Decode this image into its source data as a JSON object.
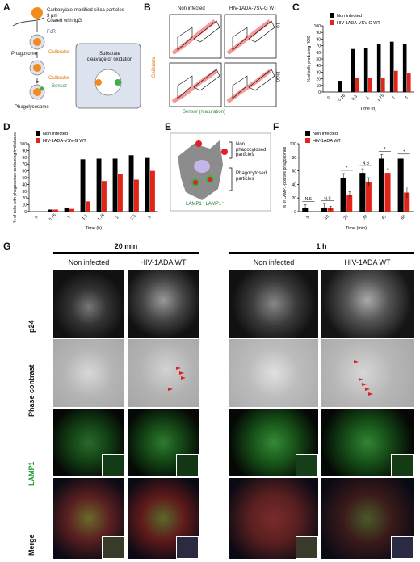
{
  "panels": {
    "a": "A",
    "b": "B",
    "c": "C",
    "d": "D",
    "e": "E",
    "f": "F",
    "g": "G"
  },
  "panelA": {
    "lines": [
      "Carboxylate-modified silica particles",
      "3 µm",
      "Coated with IgG"
    ],
    "fcr": "FcR",
    "phagosome": "Phagosome",
    "calibrator": "Calibrator",
    "sensor": "Sensor",
    "phagolysosome": "Phagolysosome",
    "box_text": [
      "Substrate",
      "cleavage or oxidation"
    ]
  },
  "panelB": {
    "col1": "Non infected",
    "col2": "HIV-1ADA-VSV-G WT",
    "row1": "10 min",
    "row2": "1h30",
    "ylabel": "Calibrator",
    "xlabel": "Sensor (maturation)",
    "r1": "R1",
    "r2": "R2",
    "ticks": [
      "10⁰",
      "10¹",
      "10²",
      "10³",
      "10⁴"
    ]
  },
  "chart_data": [
    {
      "type": "bar",
      "panel": "C",
      "categories": [
        "0",
        "0.16",
        "0.5",
        "1",
        "1.75",
        "2",
        "3"
      ],
      "series": [
        {
          "name": "Non infected",
          "color": "#000000",
          "values": [
            0,
            17,
            65,
            67,
            73,
            76,
            72
          ]
        },
        {
          "name": "HIV-1ADA-VSV-G WT",
          "color": "#e1251b",
          "values": [
            0,
            0,
            21,
            22,
            22,
            32,
            28
          ]
        }
      ],
      "xlabel": "Time (h)",
      "ylabel": "% of cells producing ROS",
      "ylim": [
        0,
        100
      ],
      "yticks": [
        "0",
        "10",
        "20",
        "30",
        "40",
        "50",
        "60",
        "70",
        "80",
        "90",
        "100"
      ]
    },
    {
      "type": "bar",
      "panel": "D",
      "categories": [
        "0",
        "0.75",
        "1",
        "1.5",
        "1.75",
        "2",
        "2.5",
        "3"
      ],
      "series": [
        {
          "name": "Non infected",
          "color": "#000000",
          "values": [
            0,
            3,
            6,
            77,
            78,
            78,
            83,
            79
          ]
        },
        {
          "name": "HIV-1ADA-VSV-G WT",
          "color": "#e1251b",
          "values": [
            0,
            3,
            4,
            15,
            45,
            55,
            47,
            60
          ]
        }
      ],
      "xlabel": "Time (h)",
      "ylabel": "% of cells with phagosomes containing hydrolases",
      "ylim": [
        0,
        100
      ],
      "yticks": [
        "0",
        "10",
        "20",
        "30",
        "40",
        "50",
        "60",
        "70",
        "80",
        "90",
        "100"
      ]
    },
    {
      "type": "bar",
      "panel": "F",
      "categories": [
        "5",
        "10",
        "20",
        "30",
        "45",
        "60"
      ],
      "series": [
        {
          "name": "Non infected",
          "color": "#000000",
          "values": [
            5,
            6,
            50,
            57,
            78,
            78
          ]
        },
        {
          "name": "HIV-1ADA WT",
          "color": "#e1251b",
          "values": [
            0,
            5,
            25,
            44,
            57,
            28
          ]
        }
      ],
      "errors": {
        "Non infected": [
          5,
          5,
          6,
          6,
          6,
          2
        ],
        "HIV-1ADA WT": [
          0,
          3,
          4,
          6,
          6,
          8
        ]
      },
      "significance": [
        "N.S",
        "N.S",
        "*",
        "N.S",
        "*",
        "*"
      ],
      "xlabel": "Time (min)",
      "ylabel": "% of LAMP1-positive phagosomes",
      "ylim": [
        0,
        100
      ],
      "yticks": [
        "0",
        "20",
        "40",
        "60",
        "80",
        "100"
      ]
    }
  ],
  "panelE": {
    "top": "Non phagocytosed particles",
    "bottom": "Phagocytosed particles",
    "lamp": "LAMP1⁻ LAMP1⁺"
  },
  "panelG": {
    "time1": "20 min",
    "time2": "1 h",
    "cols": [
      "Non infected",
      "HIV-1ADA WT",
      "Non infected",
      "HIV-1ADA WT"
    ],
    "rows": [
      "p24",
      "Phase contrast",
      "LAMP1",
      "Merge"
    ]
  }
}
